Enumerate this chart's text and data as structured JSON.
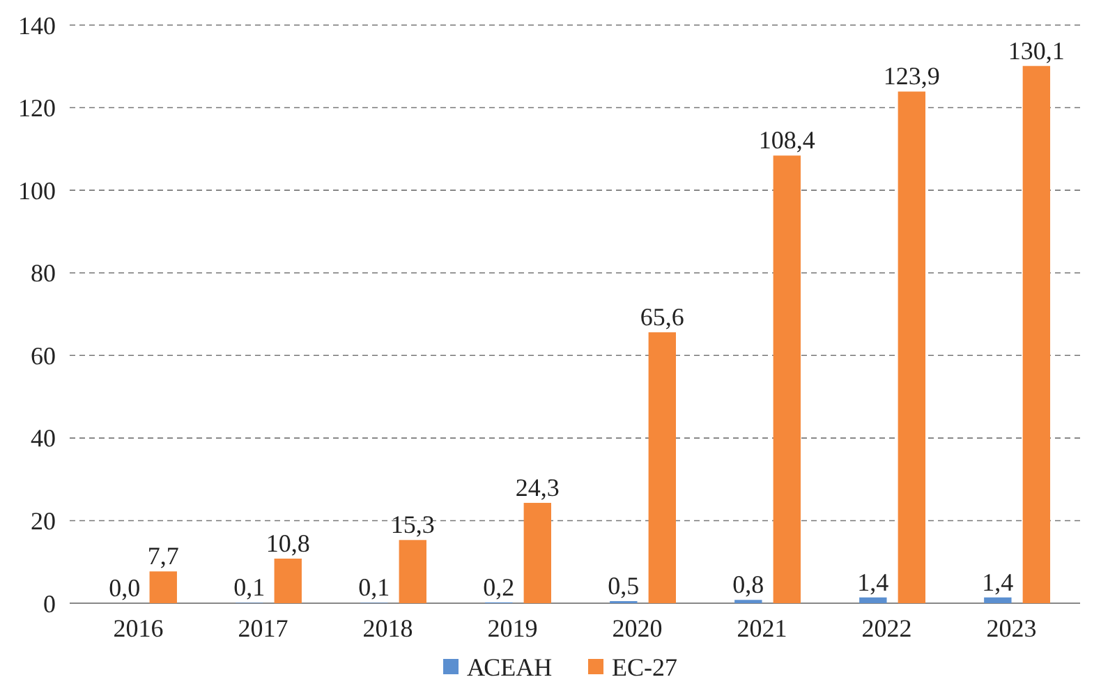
{
  "chart_data": {
    "type": "bar",
    "categories": [
      "2016",
      "2017",
      "2018",
      "2019",
      "2020",
      "2021",
      "2022",
      "2023"
    ],
    "series": [
      {
        "name": "АСЕАН",
        "color": "#5b8fd0",
        "values": [
          0.0,
          0.1,
          0.1,
          0.2,
          0.5,
          0.8,
          1.4,
          1.4
        ],
        "value_labels": [
          "0,0",
          "0,1",
          "0,1",
          "0,2",
          "0,5",
          "0,8",
          "1,4",
          "1,4"
        ]
      },
      {
        "name": "ЕС-27",
        "color": "#f5883a",
        "values": [
          7.7,
          10.8,
          15.3,
          24.3,
          65.6,
          108.4,
          123.9,
          130.1
        ],
        "value_labels": [
          "7,7",
          "10,8",
          "15,3",
          "24,3",
          "65,6",
          "108,4",
          "123,9",
          "130,1"
        ]
      }
    ],
    "ylim": [
      0,
      140
    ],
    "yticks": [
      0,
      20,
      40,
      60,
      80,
      100,
      120,
      140
    ],
    "grid": "y",
    "legend": "bottom"
  }
}
